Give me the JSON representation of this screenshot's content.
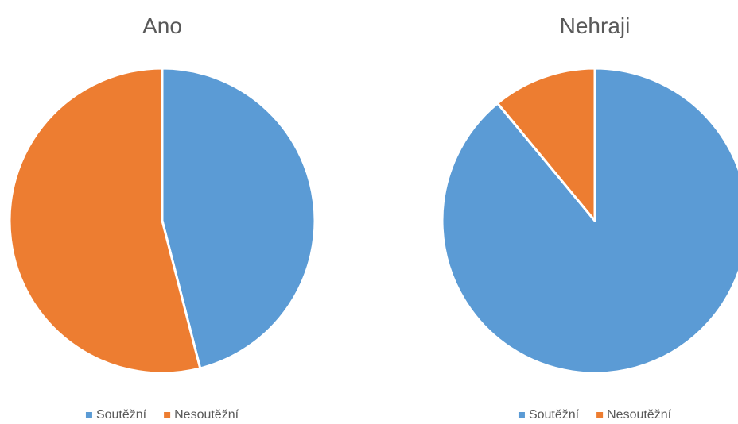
{
  "chart_data": [
    {
      "type": "pie",
      "title": "Ano",
      "categories": [
        "Soutěžní",
        "Nesoutěžní"
      ],
      "values": [
        46,
        54
      ],
      "colors": [
        "#5b9bd5",
        "#ed7d31"
      ],
      "legend": "bottom"
    },
    {
      "type": "pie",
      "title": "Nehraji",
      "categories": [
        "Soutěžní",
        "Nesoutěžní"
      ],
      "values": [
        89,
        11
      ],
      "colors": [
        "#5b9bd5",
        "#ed7d31"
      ],
      "legend": "bottom"
    }
  ]
}
